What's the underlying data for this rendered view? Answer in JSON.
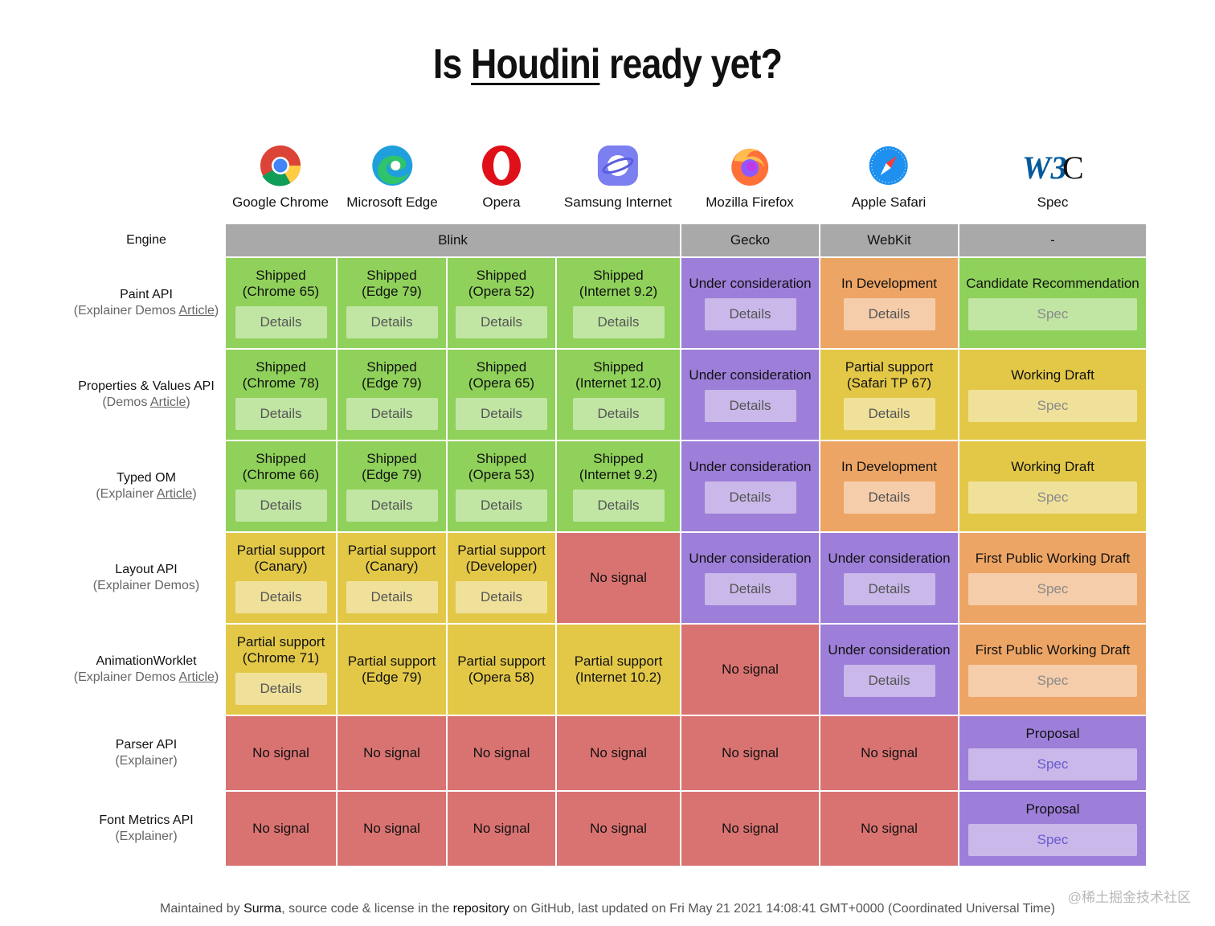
{
  "page": {
    "title_prefix": "Is",
    "title_link": "Houdini",
    "title_suffix": "ready yet?"
  },
  "colors": {
    "shipped": "#8fd15a",
    "partial": "#e3c848",
    "consider": "#9d7ed8",
    "dev": "#eda565",
    "nosignal": "#d97371",
    "engine": "#a9a9a9"
  },
  "browsers": [
    {
      "name": "Google Chrome",
      "icon": "chrome-icon"
    },
    {
      "name": "Microsoft Edge",
      "icon": "edge-icon"
    },
    {
      "name": "Opera",
      "icon": "opera-icon"
    },
    {
      "name": "Samsung Internet",
      "icon": "samsung-internet-icon"
    },
    {
      "name": "Mozilla Firefox",
      "icon": "firefox-icon"
    },
    {
      "name": "Apple Safari",
      "icon": "safari-icon"
    },
    {
      "name": "Spec",
      "icon": "w3c-icon"
    }
  ],
  "engine_label": "Engine",
  "engines": [
    {
      "name": "Blink"
    },
    {
      "name": "Gecko"
    },
    {
      "name": "WebKit"
    },
    {
      "name": "-"
    }
  ],
  "rows": [
    {
      "name": "Paint API",
      "links_pre": "(Explainer Demos ",
      "links_link": "Article",
      "links_post": ")",
      "cells": [
        {
          "status": "Shipped\n(Chrome 65)",
          "btn": "Details",
          "kind": "shipped"
        },
        {
          "status": "Shipped\n(Edge 79)",
          "btn": "Details",
          "kind": "shipped"
        },
        {
          "status": "Shipped\n(Opera 52)",
          "btn": "Details",
          "kind": "shipped"
        },
        {
          "status": "Shipped\n(Internet 9.2)",
          "btn": "Details",
          "kind": "shipped"
        },
        {
          "status": "Under consideration",
          "btn": "Details",
          "kind": "consider"
        },
        {
          "status": "In Development",
          "btn": "Details",
          "kind": "dev"
        },
        {
          "status": "Candidate Recommendation",
          "btn": "Spec",
          "kind": "shipped"
        }
      ]
    },
    {
      "name": "Properties & Values API",
      "links_pre": "(Demos ",
      "links_link": "Article",
      "links_post": ")",
      "cells": [
        {
          "status": "Shipped\n(Chrome 78)",
          "btn": "Details",
          "kind": "shipped"
        },
        {
          "status": "Shipped\n(Edge 79)",
          "btn": "Details",
          "kind": "shipped"
        },
        {
          "status": "Shipped\n(Opera 65)",
          "btn": "Details",
          "kind": "shipped"
        },
        {
          "status": "Shipped\n(Internet 12.0)",
          "btn": "Details",
          "kind": "shipped"
        },
        {
          "status": "Under consideration",
          "btn": "Details",
          "kind": "consider"
        },
        {
          "status": "Partial support\n(Safari TP 67)",
          "btn": "Details",
          "kind": "partial"
        },
        {
          "status": "Working Draft",
          "btn": "Spec",
          "kind": "partial"
        }
      ]
    },
    {
      "name": "Typed OM",
      "links_pre": "(Explainer ",
      "links_link": "Article",
      "links_post": ")",
      "cells": [
        {
          "status": "Shipped\n(Chrome 66)",
          "btn": "Details",
          "kind": "shipped"
        },
        {
          "status": "Shipped\n(Edge 79)",
          "btn": "Details",
          "kind": "shipped"
        },
        {
          "status": "Shipped\n(Opera 53)",
          "btn": "Details",
          "kind": "shipped"
        },
        {
          "status": "Shipped\n(Internet 9.2)",
          "btn": "Details",
          "kind": "shipped"
        },
        {
          "status": "Under consideration",
          "btn": "Details",
          "kind": "consider"
        },
        {
          "status": "In Development",
          "btn": "Details",
          "kind": "dev"
        },
        {
          "status": "Working Draft",
          "btn": "Spec",
          "kind": "partial"
        }
      ]
    },
    {
      "name": "Layout API",
      "links_pre": "(Explainer Demos)",
      "links_link": "",
      "links_post": "",
      "cells": [
        {
          "status": "Partial support\n(Canary)",
          "btn": "Details",
          "kind": "partial"
        },
        {
          "status": "Partial support\n(Canary)",
          "btn": "Details",
          "kind": "partial"
        },
        {
          "status": "Partial support\n(Developer)",
          "btn": "Details",
          "kind": "partial"
        },
        {
          "status": "No signal",
          "btn": "",
          "kind": "nosignal"
        },
        {
          "status": "Under consideration",
          "btn": "Details",
          "kind": "consider"
        },
        {
          "status": "Under consideration",
          "btn": "Details",
          "kind": "consider"
        },
        {
          "status": "First Public Working Draft",
          "btn": "Spec",
          "kind": "dev"
        }
      ]
    },
    {
      "name": "AnimationWorklet",
      "links_pre": "(Explainer Demos ",
      "links_link": "Article",
      "links_post": ")",
      "cells": [
        {
          "status": "Partial support\n(Chrome 71)",
          "btn": "Details",
          "kind": "partial"
        },
        {
          "status": "Partial support\n(Edge 79)",
          "btn": "",
          "kind": "partial"
        },
        {
          "status": "Partial support\n(Opera 58)",
          "btn": "",
          "kind": "partial"
        },
        {
          "status": "Partial support\n(Internet 10.2)",
          "btn": "",
          "kind": "partial"
        },
        {
          "status": "No signal",
          "btn": "",
          "kind": "nosignal"
        },
        {
          "status": "Under consideration",
          "btn": "Details",
          "kind": "consider"
        },
        {
          "status": "First Public Working Draft",
          "btn": "Spec",
          "kind": "dev"
        }
      ]
    },
    {
      "name": "Parser API",
      "links_pre": "(Explainer)",
      "links_link": "",
      "links_post": "",
      "cells": [
        {
          "status": "No signal",
          "btn": "",
          "kind": "nosignal"
        },
        {
          "status": "No signal",
          "btn": "",
          "kind": "nosignal"
        },
        {
          "status": "No signal",
          "btn": "",
          "kind": "nosignal"
        },
        {
          "status": "No signal",
          "btn": "",
          "kind": "nosignal"
        },
        {
          "status": "No signal",
          "btn": "",
          "kind": "nosignal"
        },
        {
          "status": "No signal",
          "btn": "",
          "kind": "nosignal"
        },
        {
          "status": "Proposal",
          "btn": "Spec",
          "kind": "consider"
        }
      ]
    },
    {
      "name": "Font Metrics API",
      "links_pre": "(Explainer)",
      "links_link": "",
      "links_post": "",
      "cells": [
        {
          "status": "No signal",
          "btn": "",
          "kind": "nosignal"
        },
        {
          "status": "No signal",
          "btn": "",
          "kind": "nosignal"
        },
        {
          "status": "No signal",
          "btn": "",
          "kind": "nosignal"
        },
        {
          "status": "No signal",
          "btn": "",
          "kind": "nosignal"
        },
        {
          "status": "No signal",
          "btn": "",
          "kind": "nosignal"
        },
        {
          "status": "No signal",
          "btn": "",
          "kind": "nosignal"
        },
        {
          "status": "Proposal",
          "btn": "Spec",
          "kind": "consider"
        }
      ]
    }
  ],
  "footer": {
    "t1": "Maintained by ",
    "author": "Surma",
    "t2": ", source code & license in the ",
    "repo": "repository",
    "t3": " on GitHub, last updated on Fri May 21 2021 14:08:41 GMT+0000 (Coordinated Universal Time)"
  },
  "watermark": "@稀土掘金技术社区"
}
